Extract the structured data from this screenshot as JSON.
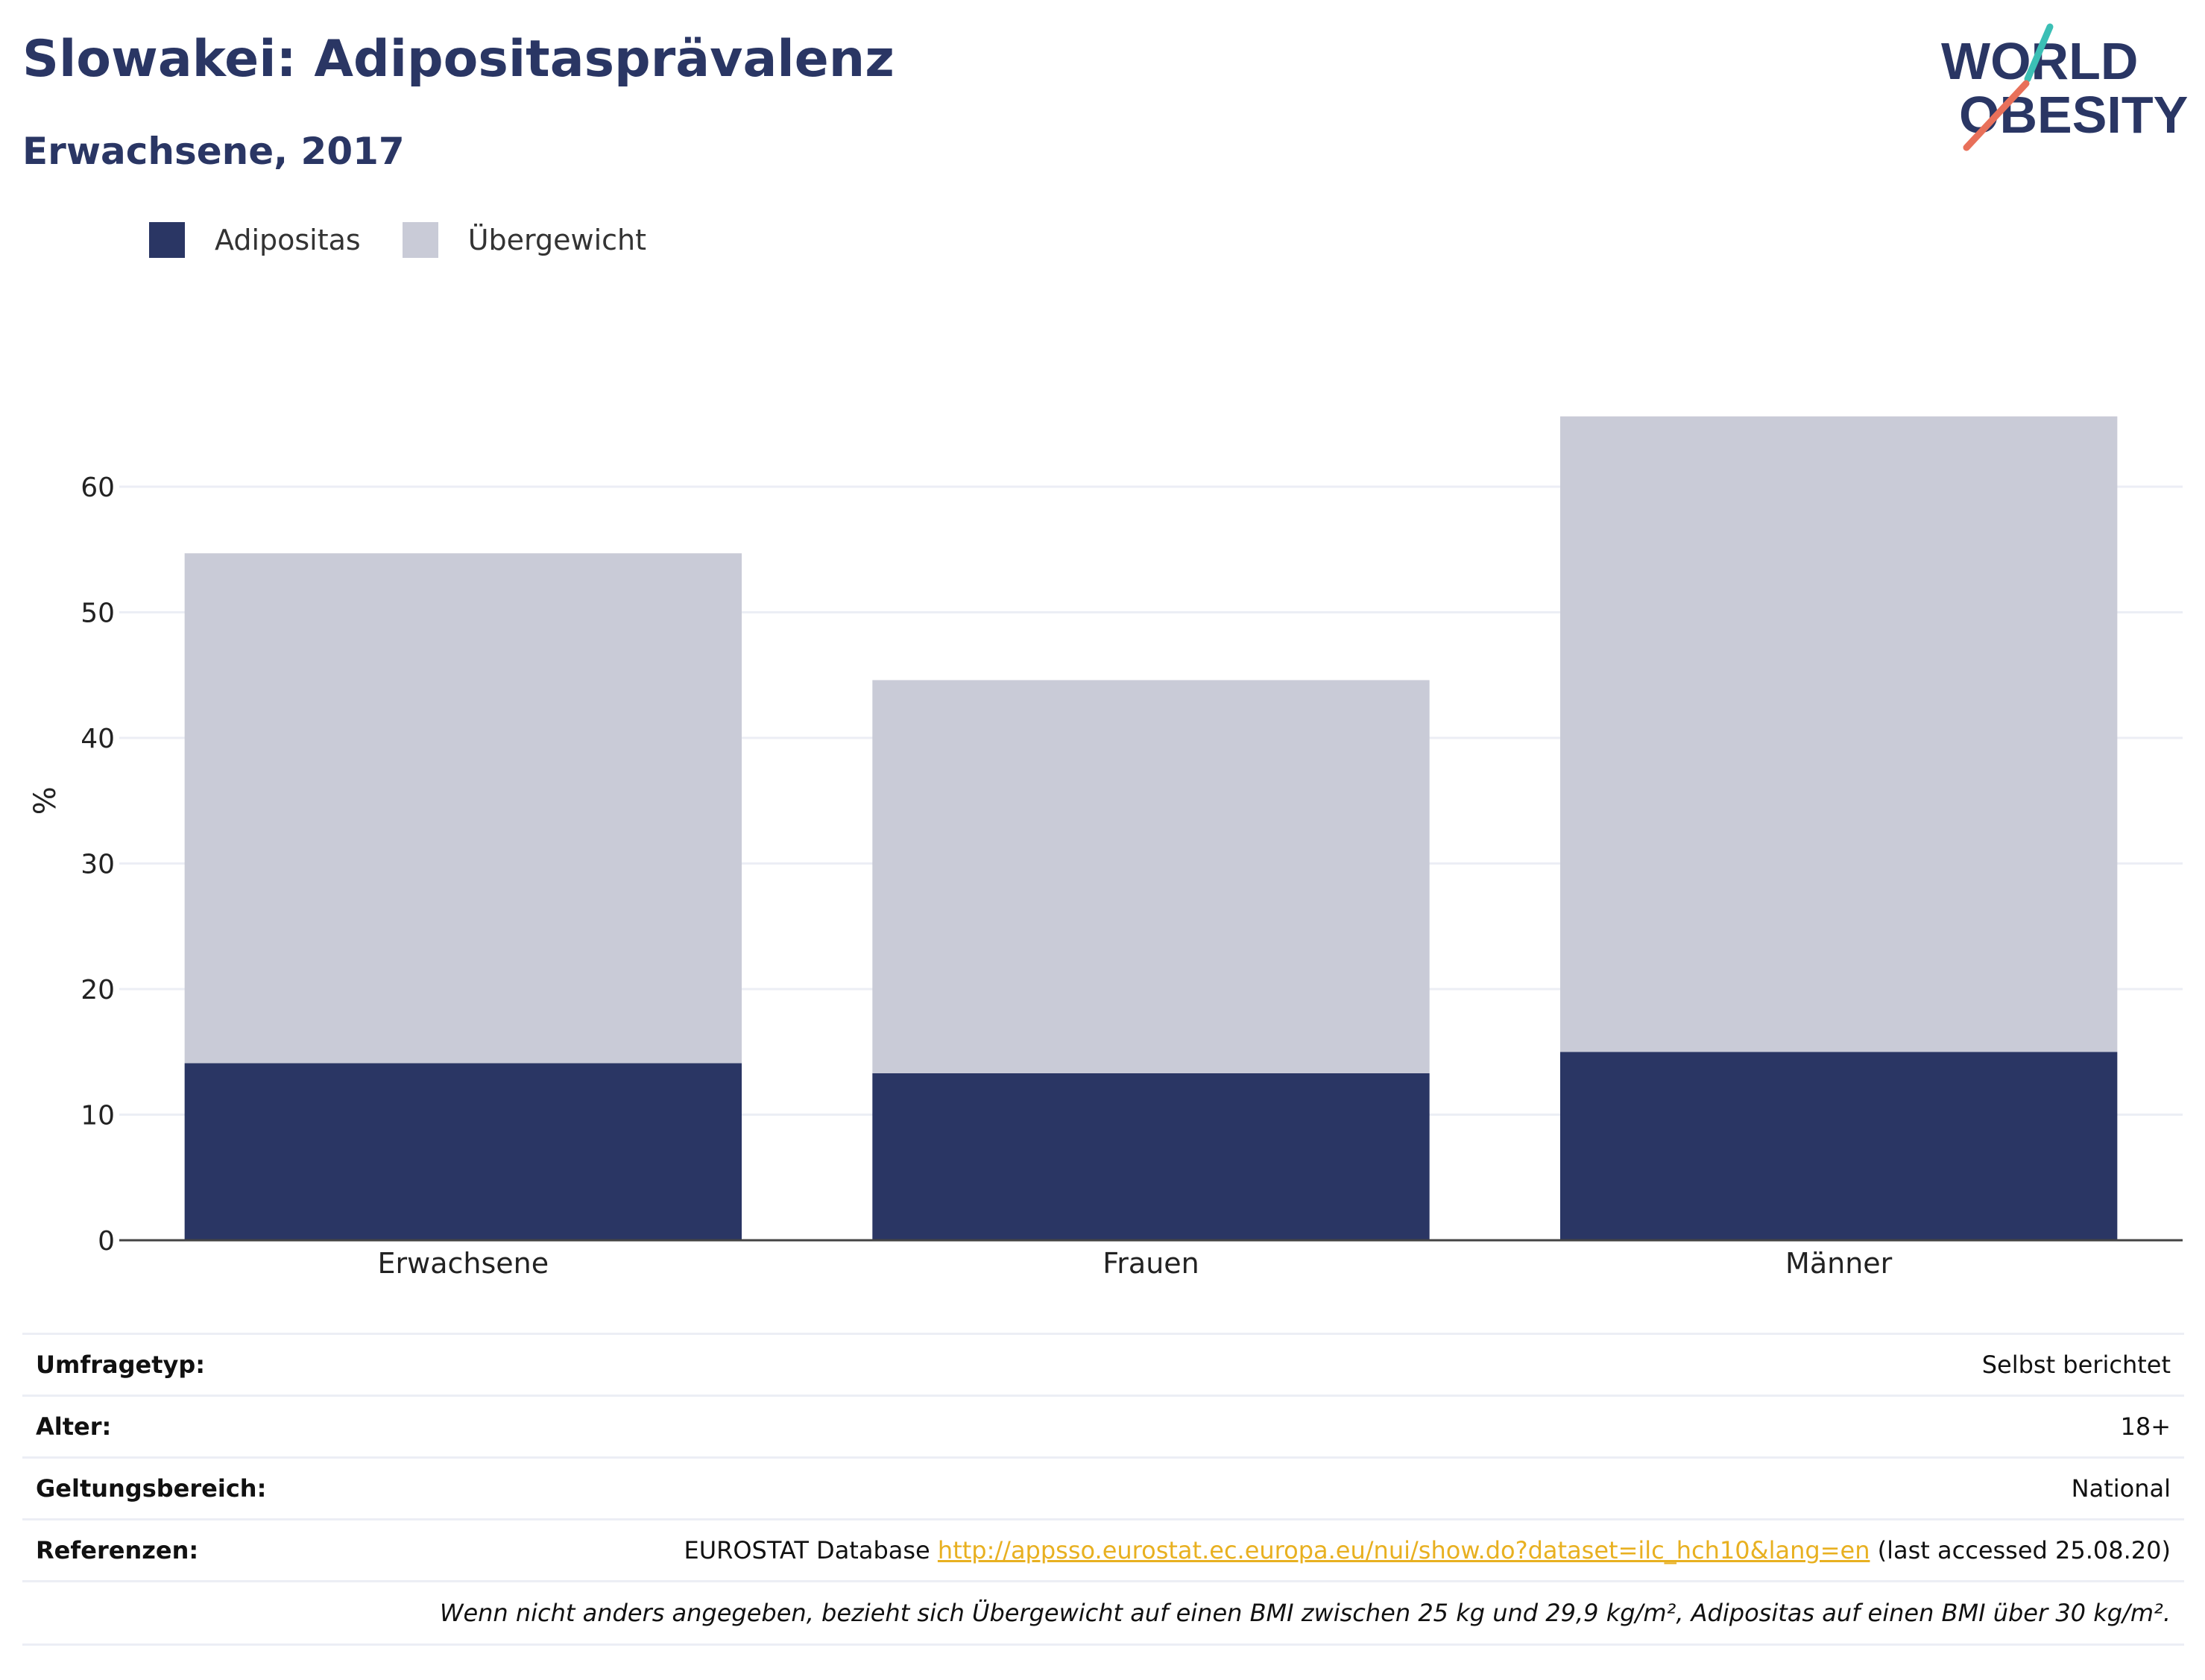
{
  "header": {
    "title": "Slowakei: Adipositasprävalenz",
    "subtitle": "Erwachsene, 2017",
    "logo_line1": "WORLD",
    "logo_line2": "OBESITY"
  },
  "colors": {
    "obesity": "#2a3664",
    "overweight": "#c9cbd7",
    "grid": "#eceef5",
    "axis": "#444444",
    "link": "#e8b020",
    "logo_teal": "#3bbfb5",
    "logo_coral": "#e8705a"
  },
  "chart_data": {
    "type": "bar",
    "stacked": true,
    "categories": [
      "Erwachsene",
      "Frauen",
      "Männer"
    ],
    "series": [
      {
        "name": "Adipositas",
        "values": [
          14.1,
          13.3,
          15.0
        ]
      },
      {
        "name": "Übergewicht",
        "values": [
          40.6,
          31.3,
          50.6
        ]
      }
    ],
    "ylabel": "%",
    "ylim": [
      0,
      70
    ],
    "yticks": [
      0,
      10,
      20,
      30,
      40,
      50,
      60
    ],
    "grid": true,
    "legend_position": "top-left"
  },
  "info": {
    "rows": [
      {
        "label": "Umfragetyp:",
        "value": "Selbst berichtet"
      },
      {
        "label": "Alter:",
        "value": "18+"
      },
      {
        "label": "Geltungsbereich:",
        "value": "National"
      }
    ],
    "reference": {
      "label": "Referenzen:",
      "prefix": "EUROSTAT Database ",
      "link": "http://appsso.eurostat.ec.europa.eu/nui/show.do?dataset=ilc_hch10&lang=en",
      "suffix": " (last accessed 25.08.20)"
    },
    "note": "Wenn nicht anders angegeben, bezieht sich Übergewicht auf einen BMI zwischen 25 kg und 29,9 kg/m², Adipositas auf einen BMI über 30 kg/m²."
  }
}
